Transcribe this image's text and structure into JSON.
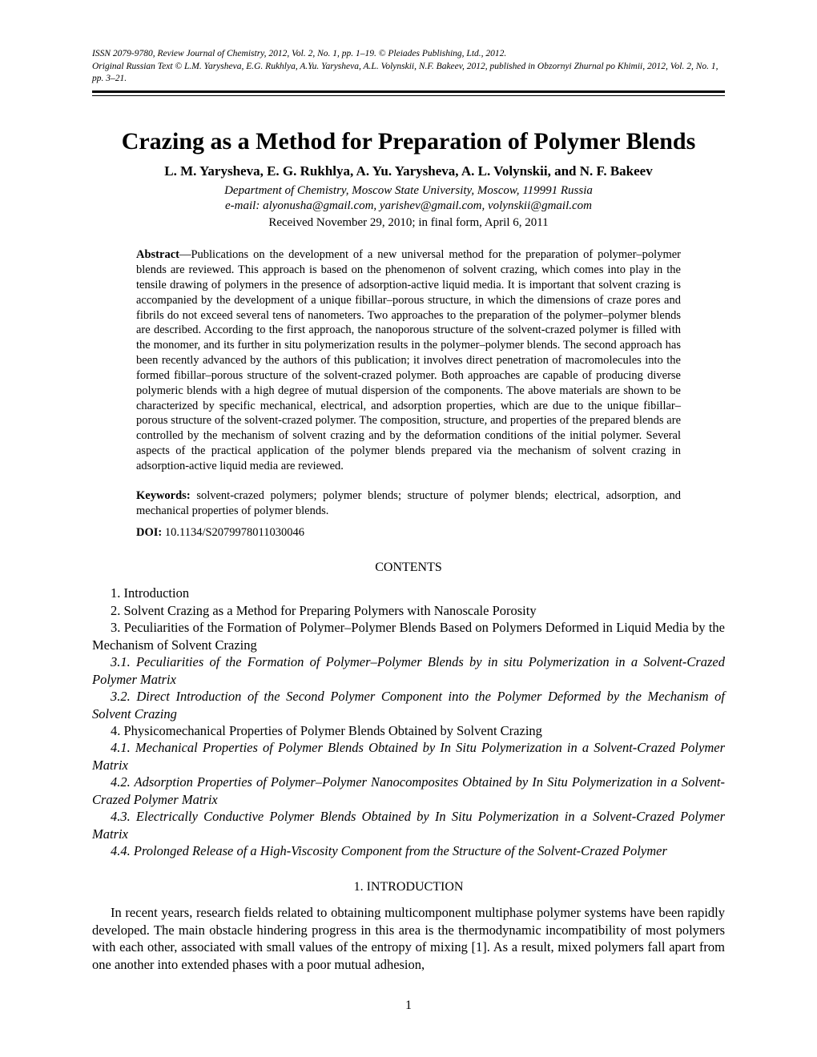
{
  "header": {
    "line1": "ISSN 2079-9780, Review Journal of Chemistry, 2012, Vol. 2, No. 1, pp. 1–19. © Pleiades Publishing, Ltd., 2012.",
    "line2": "Original Russian Text © L.M. Yarysheva, E.G. Rukhlya, A.Yu. Yarysheva, A.L. Volynskii, N.F. Bakeev, 2012, published in Obzornyi Zhurnal po Khimii, 2012, Vol. 2, No. 1, pp. 3–21."
  },
  "title": "Crazing as a Method for Preparation of Polymer Blends",
  "authors": "L. M. Yarysheva, E. G. Rukhlya, A. Yu. Yarysheva, A. L. Volynskii, and N. F. Bakeev",
  "affiliation": "Department of Chemistry, Moscow State University, Moscow, 119991 Russia",
  "emails": "e-mail: alyonusha@gmail.com, yarishev@gmail.com, volynskii@gmail.com",
  "received": "Received November 29, 2010; in final form, April 6, 2011",
  "abstract": {
    "label": "Abstract",
    "text": "—Publications on the development of a new universal method for the preparation of polymer–polymer blends are reviewed. This approach is based on the phenomenon of solvent crazing, which comes into play in the tensile drawing of polymers in the presence of adsorption-active liquid media. It is important that solvent crazing is accompanied by the development of a unique fibillar–porous structure, in which the dimensions of craze pores and fibrils do not exceed several tens of nanometers. Two approaches to the preparation of the polymer–polymer blends are described. According to the first approach, the nanoporous structure of the solvent-crazed polymer is filled with the monomer, and its further in situ polymerization results in the polymer–polymer blends. The second approach has been recently advanced by the authors of this publication; it involves direct penetration of macromolecules into the formed fibillar–porous structure of the solvent-crazed polymer. Both approaches are capable of producing diverse polymeric blends with a high degree of mutual dispersion of the components. The above materials are shown to be characterized by specific mechanical, electrical, and adsorption properties, which are due to the unique fibillar–porous structure of the solvent-crazed polymer. The composition, structure, and properties of the prepared blends are controlled by the mechanism of solvent crazing and by the deformation conditions of the initial polymer. Several aspects of the practical application of the polymer blends prepared via the mechanism of solvent crazing in adsorption-active liquid media are reviewed."
  },
  "keywords": {
    "label": "Keywords:",
    "text": " solvent-crazed polymers; polymer blends; structure of polymer blends; electrical, adsorption, and mechanical properties of polymer blends."
  },
  "doi": {
    "label": "DOI:",
    "text": " 10.1134/S2079978011030046"
  },
  "contents_heading": "CONTENTS",
  "contents": {
    "c1": "1. Introduction",
    "c2": "2. Solvent Crazing as a Method for Preparing Polymers with Nanoscale Porosity",
    "c3": "3. Peculiarities of the Formation of Polymer–Polymer Blends Based on Polymers Deformed in Liquid Media by the Mechanism of Solvent Crazing",
    "c3_1": "3.1. Peculiarities of the Formation of Polymer–Polymer Blends by in situ Polymerization in a Solvent-Crazed Polymer Matrix",
    "c3_2": "3.2. Direct Introduction of the Second Polymer Component into the Polymer Deformed by the Mechanism of Solvent Crazing",
    "c4": "4. Physicomechanical Properties of Polymer Blends Obtained by Solvent Crazing",
    "c4_1": "4.1. Mechanical Properties of Polymer Blends Obtained by In Situ Polymerization in a Solvent-Crazed Polymer Matrix",
    "c4_2": "4.2. Adsorption Properties of Polymer–Polymer Nanocomposites Obtained by In Situ Polymerization in a Solvent-Crazed Polymer Matrix",
    "c4_3": "4.3. Electrically Conductive Polymer Blends Obtained by In Situ Polymerization in a Solvent-Crazed Polymer Matrix",
    "c4_4": "4.4. Prolonged Release of a High-Viscosity Component from the Structure of the Solvent-Crazed Polymer"
  },
  "intro_heading": "1. INTRODUCTION",
  "intro_text": "In recent years, research fields related to obtaining multicomponent multiphase polymer systems have been rapidly developed. The main obstacle hindering progress in this area is the thermodynamic incompatibility of most polymers with each other, associated with small values of the entropy of mixing [1]. As a result, mixed polymers fall apart from one another into extended phases with a poor mutual adhesion,",
  "page_number": "1"
}
